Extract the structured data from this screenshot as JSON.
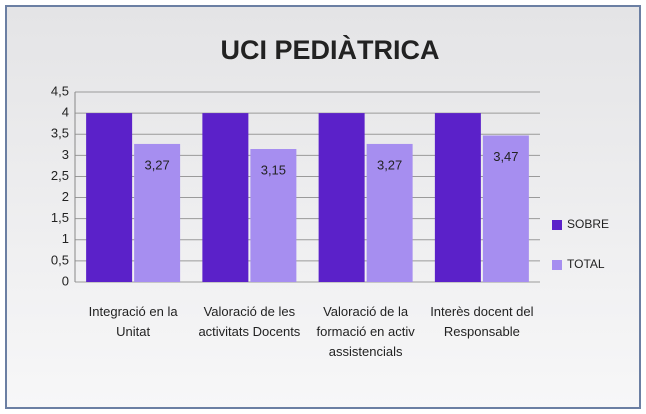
{
  "chart_data": {
    "type": "bar",
    "title": "UCI PEDIÀTRICA",
    "categories": [
      "Integració en la Unitat",
      "Valoració de les activitats Docents",
      "Valoració de la formació en activ assistencials",
      "Interès docent del Responsable"
    ],
    "series": [
      {
        "name": "SOBRE",
        "color": "#5b21c9",
        "values": [
          4,
          4,
          4,
          4
        ]
      },
      {
        "name": "TOTAL",
        "color": "#a68ef0",
        "values": [
          3.27,
          3.15,
          3.27,
          3.47
        ],
        "value_labels": [
          "3,27",
          "3,15",
          "3,27",
          "3,47"
        ]
      }
    ],
    "ylim": [
      0,
      4.5
    ],
    "yticks": [
      0,
      {
        "value": 0.5,
        "label": "0,5"
      },
      1,
      {
        "value": 1.5,
        "label": "1,5"
      },
      2,
      {
        "value": 2.5,
        "label": "2,5"
      },
      3,
      {
        "value": 3.5,
        "label": "3,5"
      },
      4,
      {
        "value": 4.5,
        "label": "4,5"
      }
    ],
    "grid": true,
    "legend": "right"
  }
}
